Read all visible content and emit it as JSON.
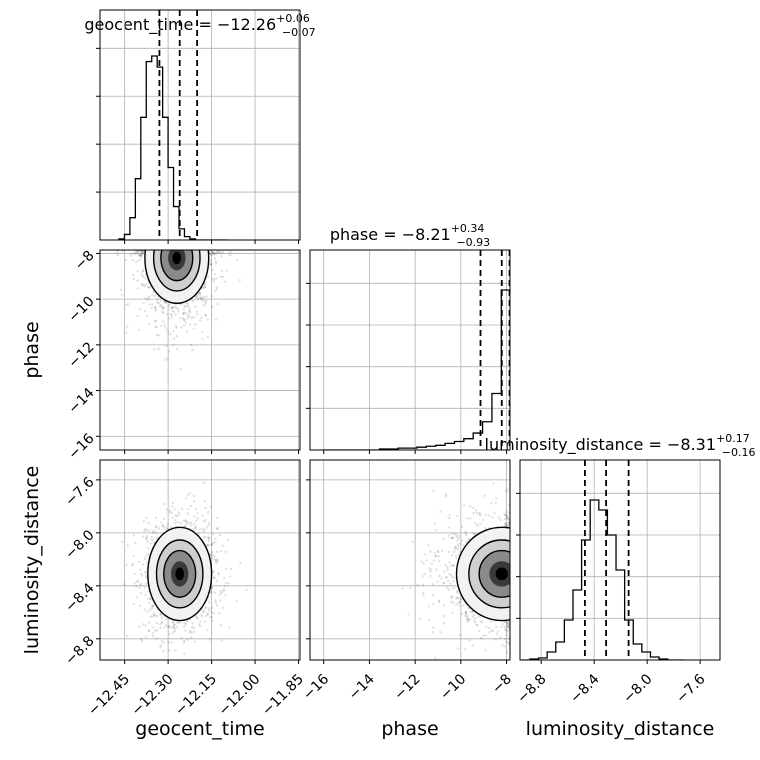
{
  "chart_data": {
    "type": "scatter",
    "variables": [
      "geocent_time",
      "phase",
      "luminosity_distance"
    ],
    "titles": [
      {
        "name": "geocent_time",
        "median": "−12.26",
        "plus": "+0.06",
        "minus": "−0.07"
      },
      {
        "name": "phase",
        "median": "−8.21",
        "plus": "+0.34",
        "minus": "−0.93"
      },
      {
        "name": "luminosity_distance",
        "median": "−8.31",
        "plus": "+0.17",
        "minus": "−0.16"
      }
    ],
    "axes": {
      "geocent_time": {
        "range": [
          -12.535,
          -11.845
        ],
        "ticks": [
          -12.45,
          -12.3,
          -12.15,
          -12.0,
          -11.85
        ],
        "tick_labels": [
          "−12.45",
          "−12.30",
          "−12.15",
          "−12.00",
          "−11.85"
        ],
        "label": "geocent_time"
      },
      "phase": {
        "range": [
          -16.6,
          -7.85
        ],
        "ticks": [
          -16,
          -14,
          -12,
          -10,
          -8
        ],
        "tick_labels": [
          "−16",
          "−14",
          "−12",
          "−10",
          "−8"
        ],
        "label": "phase"
      },
      "luminosity_distance": {
        "range": [
          -8.96,
          -7.45
        ],
        "ticks": [
          -8.8,
          -8.4,
          -8.0,
          -7.6
        ],
        "tick_labels": [
          "−8.8",
          "−8.4",
          "−8.0",
          "−7.6"
        ],
        "label": "luminosity_distance"
      }
    },
    "histograms": {
      "geocent_time": {
        "bin_edges": [
          -12.4695,
          -12.4507,
          -12.4319,
          -12.413,
          -12.3942,
          -12.3754,
          -12.3566,
          -12.3377,
          -12.3189,
          -12.3001,
          -12.2813,
          -12.2624,
          -12.2436,
          -12.2248,
          -12.206,
          -12.1871,
          -12.1683,
          -12.1495,
          -12.1307,
          -12.1118,
          -12.093
        ],
        "counts": [
          1,
          5,
          20,
          55,
          110,
          160,
          165,
          155,
          110,
          65,
          30,
          10,
          3,
          1,
          0,
          0,
          0,
          0,
          0,
          0
        ],
        "quantiles": [
          -12.33,
          -12.26,
          -12.2
        ]
      },
      "phase": {
        "bin_edges": [
          -16.02,
          -15.61,
          -15.2,
          -14.79,
          -14.38,
          -13.97,
          -13.56,
          -13.15,
          -12.74,
          -12.33,
          -11.92,
          -11.51,
          -11.1,
          -10.69,
          -10.28,
          -9.87,
          -9.46,
          -9.05,
          -8.64,
          -8.23,
          -7.82
        ],
        "counts": [
          0,
          0,
          0,
          0,
          0,
          0,
          1,
          1,
          2,
          2,
          3,
          4,
          5,
          7,
          9,
          12,
          18,
          30,
          60,
          170
        ],
        "quantiles": [
          -9.14,
          -8.21,
          -7.87
        ]
      },
      "luminosity_distance": {
        "bin_edges": [
          -8.95,
          -8.885,
          -8.82,
          -8.755,
          -8.69,
          -8.625,
          -8.56,
          -8.495,
          -8.43,
          -8.365,
          -8.3,
          -8.235,
          -8.17,
          -8.105,
          -8.04,
          -7.975,
          -7.91,
          -7.845,
          -7.78,
          -7.715
        ],
        "counts": [
          0,
          1,
          2,
          8,
          18,
          40,
          70,
          120,
          160,
          150,
          125,
          90,
          40,
          16,
          8,
          3,
          1,
          0,
          0
        ],
        "quantiles": [
          -8.47,
          -8.31,
          -8.14
        ]
      }
    },
    "scatter_2d": [
      {
        "x": "geocent_time",
        "y": "phase",
        "center": [
          -12.27,
          -8.2
        ],
        "spread": [
          0.05,
          0.9
        ]
      },
      {
        "x": "geocent_time",
        "y": "luminosity_distance",
        "center": [
          -12.26,
          -8.31
        ],
        "spread": [
          0.05,
          0.16
        ]
      },
      {
        "x": "phase",
        "y": "luminosity_distance",
        "center": [
          -8.21,
          -8.31
        ],
        "spread": [
          0.9,
          0.16
        ]
      }
    ],
    "grid": true
  }
}
